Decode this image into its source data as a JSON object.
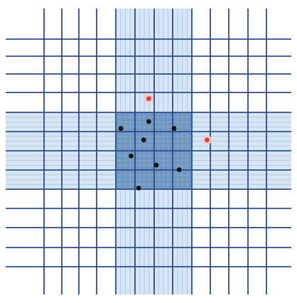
{
  "diagram": {
    "colors": {
      "background": "#ffffff",
      "band": "#d6e6f5",
      "center_block": "#6f98c0",
      "major_line": "#2e4a8a",
      "minor_line": "#8fb4da",
      "black_point": "#111111",
      "red_point": "#e23a3a",
      "red_halo": "#f6c9c9"
    },
    "grid": {
      "columns": 14,
      "rows": 9,
      "highlighted_column_span": [
        4,
        7
      ],
      "highlighted_row_span": [
        4,
        7
      ],
      "center_block": {
        "col_span": [
          4,
          7
        ],
        "row_span": [
          4,
          7
        ]
      },
      "minor_subdivisions_in_band": 4
    },
    "points": [
      {
        "kind": "black",
        "col": 4.2,
        "row": 4.7
      },
      {
        "kind": "black",
        "col": 5.3,
        "row": 4.4
      },
      {
        "kind": "black",
        "col": 6.3,
        "row": 4.7
      },
      {
        "kind": "black",
        "col": 5.1,
        "row": 5.2
      },
      {
        "kind": "black",
        "col": 4.6,
        "row": 5.9
      },
      {
        "kind": "black",
        "col": 5.6,
        "row": 6.3
      },
      {
        "kind": "black",
        "col": 6.5,
        "row": 6.5
      },
      {
        "kind": "black",
        "col": 4.9,
        "row": 7.3
      },
      {
        "kind": "red",
        "col": 5.3,
        "row": 3.4
      },
      {
        "kind": "red",
        "col": 7.6,
        "row": 5.2
      }
    ]
  }
}
